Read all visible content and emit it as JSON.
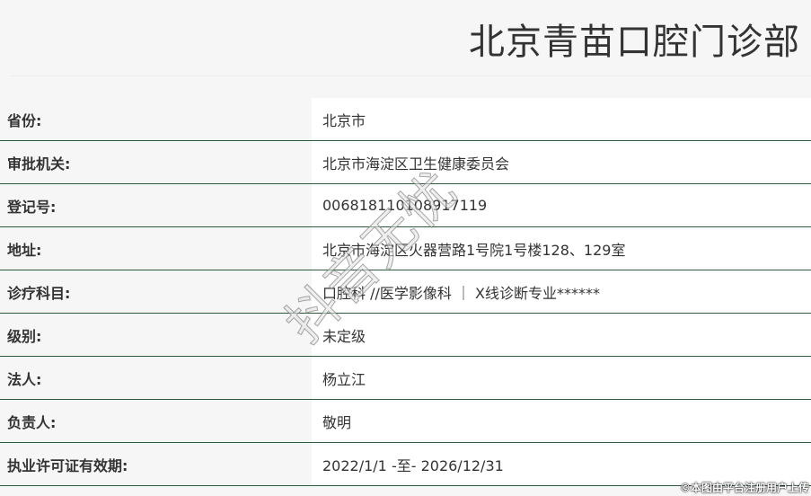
{
  "title": "北京青苗口腔门诊部",
  "rows": [
    {
      "label": "省份:",
      "value": "北京市"
    },
    {
      "label": "审批机关:",
      "value": "北京市海淀区卫生健康委员会"
    },
    {
      "label": "登记号:",
      "value": "00681811010891711​9"
    },
    {
      "label": "地址:",
      "value": "北京市海淀区火器营路1号院1号楼128、129室"
    },
    {
      "label": "诊疗科目:",
      "value": "口腔科 //医学影像科 ｜ X线诊断专业******"
    },
    {
      "label": "级别:",
      "value": "未定级"
    },
    {
      "label": "法人:",
      "value": "杨立江"
    },
    {
      "label": "负责人:",
      "value": "敬明"
    },
    {
      "label": "执业许可证有效期:",
      "value": "2022/1/1 -至- 2026/12/31"
    }
  ],
  "watermark": "抖音无忧",
  "credit": "©本图由平台注册用户上传"
}
